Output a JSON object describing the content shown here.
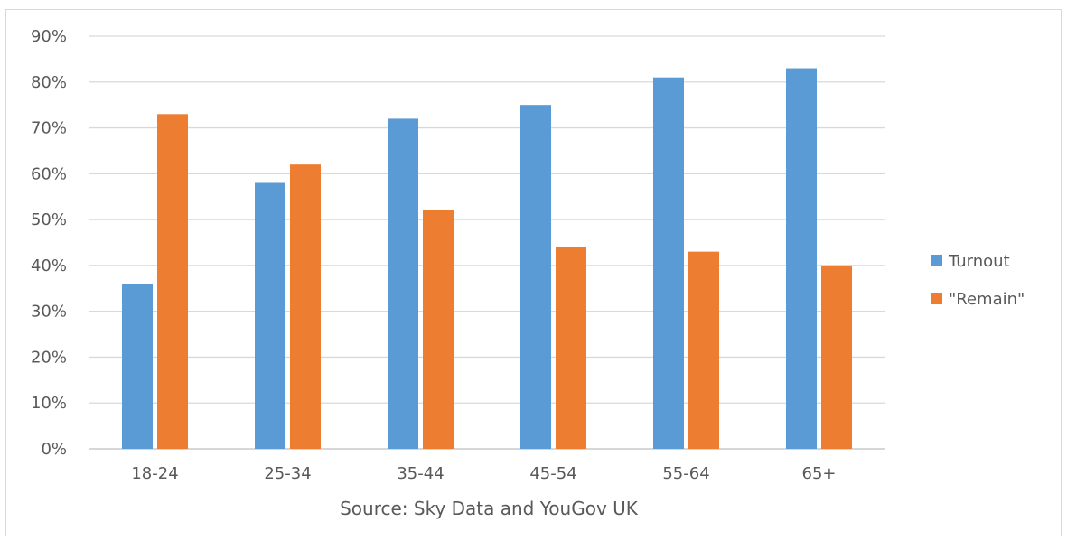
{
  "chart_data": {
    "type": "bar",
    "categories": [
      "18-24",
      "25-34",
      "35-44",
      "45-54",
      "55-64",
      "65+"
    ],
    "series": [
      {
        "name": "Turnout",
        "values": [
          36,
          58,
          72,
          75,
          81,
          83
        ],
        "color": "#5b9bd5"
      },
      {
        "name": "\"Remain\"",
        "values": [
          73,
          62,
          52,
          44,
          43,
          40
        ],
        "color": "#ed7d31"
      }
    ],
    "xlabel": "Source: Sky Data and YouGov UK",
    "ylabel": "",
    "ylim": [
      0,
      90
    ],
    "yticks": [
      0,
      10,
      20,
      30,
      40,
      50,
      60,
      70,
      80,
      90
    ],
    "ytick_format": "percent",
    "grid": true,
    "legend_position": "right"
  }
}
